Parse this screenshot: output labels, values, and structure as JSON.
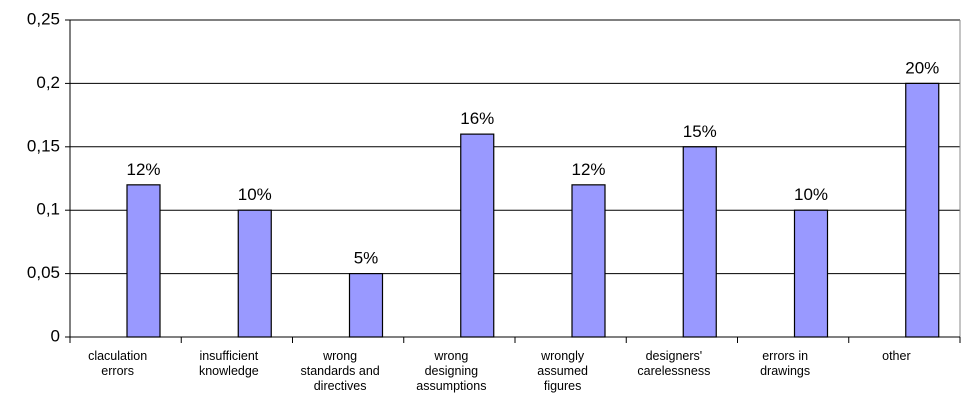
{
  "chart_data": {
    "type": "bar",
    "categories": [
      "claculation\nerrors",
      "insufficient\nknowledge",
      "wrong\nstandards and\ndirectives",
      "wrong\ndesigning\nassumptions",
      "wrongly\nassumed\nfigures",
      "designers'\ncarelessness",
      "errors in\ndrawings",
      "other"
    ],
    "values": [
      0.12,
      0.1,
      0.05,
      0.16,
      0.12,
      0.15,
      0.1,
      0.2
    ],
    "value_labels": [
      "12%",
      "10%",
      "5%",
      "16%",
      "12%",
      "15%",
      "10%",
      "20%"
    ],
    "color": "#9999ff",
    "ylim": [
      0,
      0.25
    ],
    "yticks": [
      0,
      {
        "value": 0.05,
        "label": "0,05"
      },
      {
        "value": 0.1,
        "label": "0,1"
      },
      {
        "value": 0.15,
        "label": "0,15"
      },
      {
        "value": 0.2,
        "label": "0,2"
      },
      {
        "value": 0.25,
        "label": "0,25"
      }
    ],
    "grid": true
  }
}
